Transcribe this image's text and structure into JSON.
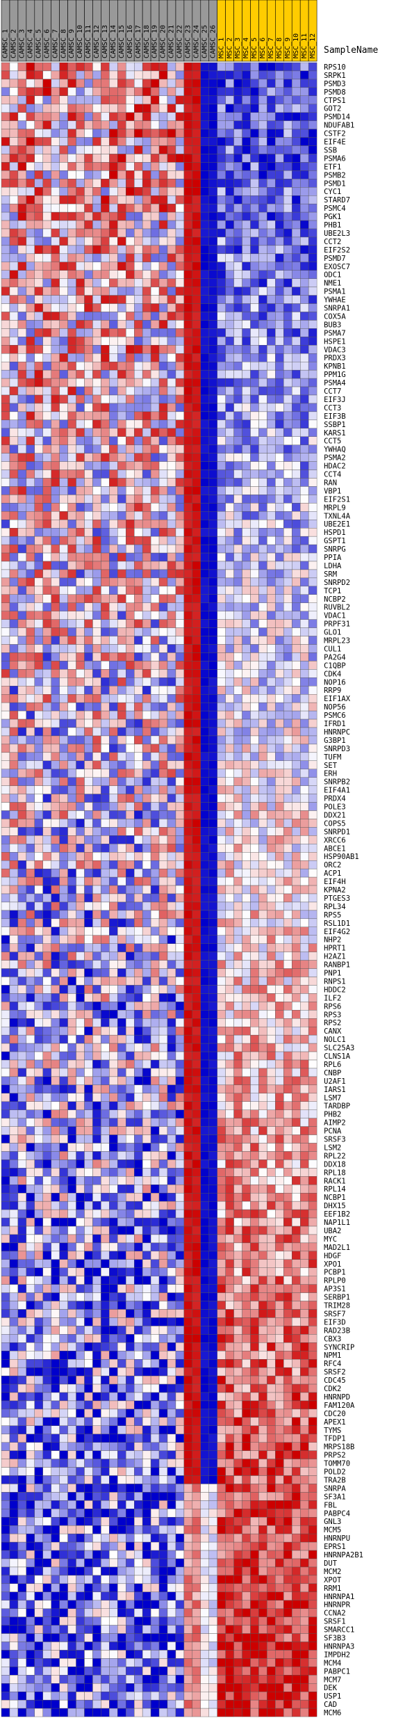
{
  "chart_data": {
    "type": "heatmap",
    "title": "SampleName",
    "group_colors": {
      "CAMSC": "#999999",
      "MSC": "#ffcc00"
    },
    "columns": [
      "CAMSC_1",
      "CAMSC_2",
      "CAMSC_3",
      "CAMSC_4",
      "CAMSC_5",
      "CAMSC_6",
      "CAMSC_7",
      "CAMSC_8",
      "CAMSC_9",
      "CAMSC_10",
      "CAMSC_11",
      "CAMSC_12",
      "CAMSC_13",
      "CAMSC_14",
      "CAMSC_15",
      "CAMSC_16",
      "CAMSC_17",
      "CAMSC_18",
      "CAMSC_19",
      "CAMSC_20",
      "CAMSC_21",
      "CAMSC_22",
      "CAMSC_23",
      "CAMSC_24",
      "CAMSC_25",
      "CAMSC_26",
      "MSC_1",
      "MSC_2",
      "MSC_3",
      "MSC_4",
      "MSC_5",
      "MSC_6",
      "MSC_7",
      "MSC_8",
      "MSC_9",
      "MSC_10",
      "MSC_11",
      "MSC_12"
    ],
    "rows": [
      "RPS10",
      "SRPK1",
      "PSMD3",
      "PSMD8",
      "CTPS1",
      "GOT2",
      "PSMD14",
      "NDUFAB1",
      "CSTF2",
      "EIF4E",
      "SSB",
      "PSMA6",
      "ETF1",
      "PSMB2",
      "PSMD1",
      "CYC1",
      "STARD7",
      "PSMC4",
      "PGK1",
      "PHB1",
      "UBE2L3",
      "CCT2",
      "EIF2S2",
      "PSMD7",
      "EXOSC7",
      "ODC1",
      "NME1",
      "PSMA1",
      "YWHAE",
      "SNRPA1",
      "COX5A",
      "BUB3",
      "PSMA7",
      "HSPE1",
      "VDAC3",
      "PRDX3",
      "KPNB1",
      "PPM1G",
      "PSMA4",
      "CCT7",
      "EIF3J",
      "CCT3",
      "EIF3B",
      "SSBP1",
      "KARS1",
      "CCT5",
      "YWHAQ",
      "PSMA2",
      "HDAC2",
      "CCT4",
      "RAN",
      "VBP1",
      "EIF2S1",
      "MRPL9",
      "TXNL4A",
      "UBE2E1",
      "HSPD1",
      "GSPT1",
      "SNRPG",
      "PPIA",
      "LDHA",
      "SRM",
      "SNRPD2",
      "TCP1",
      "NCBP2",
      "RUVBL2",
      "VDAC1",
      "PRPF31",
      "GLO1",
      "MRPL23",
      "CUL1",
      "PA2G4",
      "C1QBP",
      "CDK4",
      "NOP16",
      "RRP9",
      "EIF1AX",
      "NOP56",
      "PSMC6",
      "IFRD1",
      "HNRNPC",
      "G3BP1",
      "SNRPD3",
      "TUFM",
      "SET",
      "ERH",
      "SNRPB2",
      "EIF4A1",
      "PRDX4",
      "POLE3",
      "DDX21",
      "COPS5",
      "SNRPD1",
      "XRCC6",
      "ABCE1",
      "HSP90AB1",
      "ORC2",
      "ACP1",
      "EIF4H",
      "KPNA2",
      "PTGES3",
      "RPL34",
      "RPS5",
      "RSL1D1",
      "EIF4G2",
      "NHP2",
      "HPRT1",
      "H2AZ1",
      "RANBP1",
      "PNP1",
      "RNPS1",
      "HDDC2",
      "ILF2",
      "RPS6",
      "RPS3",
      "RPS2",
      "CANX",
      "NOLC1",
      "SLC25A3",
      "CLNS1A",
      "RPL6",
      "CNBP",
      "U2AF1",
      "IARS1",
      "LSM7",
      "TARDBP",
      "PHB2",
      "AIMP2",
      "PCNA",
      "SRSF3",
      "LSM2",
      "RPL22",
      "DDX18",
      "RPL18",
      "RACK1",
      "RPL14",
      "NCBP1",
      "DHX15",
      "EEF1B2",
      "NAP1L1",
      "UBA2",
      "MYC",
      "MAD2L1",
      "HDGF",
      "XPO1",
      "PCBP1",
      "RPLP0",
      "AP3S1",
      "SERBP1",
      "TRIM28",
      "SRSF7",
      "EIF3D",
      "RAD23B",
      "CBX3",
      "SYNCRIP",
      "NPM1",
      "RFC4",
      "SRSF2",
      "CDC45",
      "CDK2",
      "HNRNPD",
      "FAM120A",
      "CDC20",
      "APEX1",
      "TYMS",
      "TFDP1",
      "MRPS18B",
      "PRPS2",
      "TOMM70",
      "POLD2",
      "TRA2B",
      "SNRPA",
      "SF3A1",
      "FBL",
      "PABPC4",
      "GNL3",
      "MCM5",
      "HNRNPU",
      "EPRS1",
      "HNRNPA2B1",
      "DUT",
      "MCM2",
      "XPOT",
      "RRM1",
      "HNRNPA1",
      "HNRNPR",
      "CCNA2",
      "SRSF1",
      "SMARCC1",
      "SF3B3",
      "HNRNPA3",
      "IMPDH2",
      "MCM4",
      "PABPC1",
      "MCM7",
      "DEK",
      "USP1",
      "CAD",
      "MCM6"
    ],
    "color_scale": {
      "low": "#0000cc",
      "mid": "#ffffff",
      "high": "#cc0000"
    }
  }
}
